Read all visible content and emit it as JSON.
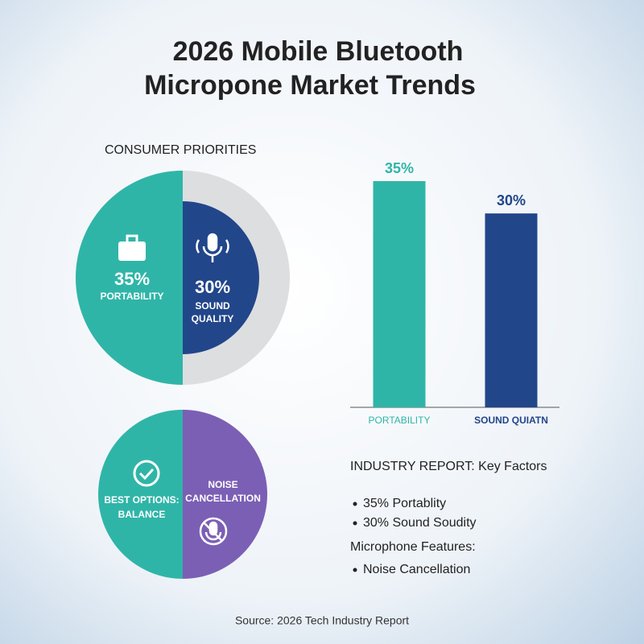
{
  "title_lines": [
    "2026 Mobile Bluetooth",
    "Micropone Market Trends"
  ],
  "priorities": {
    "heading": "CONSUMER PRIORITIES",
    "portability": {
      "value": "35%",
      "label": "PORTABILITY"
    },
    "sound": {
      "value": "30%",
      "label_lines": [
        "SOUND",
        "QUALITY"
      ]
    }
  },
  "features": {
    "left_lines": [
      "BEST OPTIONS:",
      "BALANCE"
    ],
    "right_lines": [
      "NOISE",
      "CANCELLATION"
    ]
  },
  "chart_data": {
    "type": "bar",
    "categories": [
      "PORTABILITY",
      "SOUND QUIATN"
    ],
    "values": [
      35,
      30
    ],
    "value_labels": [
      "35%",
      "30%"
    ],
    "colors": [
      "#2fb5a8",
      "#22468a"
    ]
  },
  "report": {
    "heading": "INDUSTRY REPORT: Key Factors",
    "bullets": [
      "35% Portablity",
      "30% Sound Soudity"
    ],
    "subheading": "Microphone Features:",
    "sub_bullets": [
      "Noise Cancellation"
    ]
  },
  "source": "Source: 2026 Tech Industry Report"
}
